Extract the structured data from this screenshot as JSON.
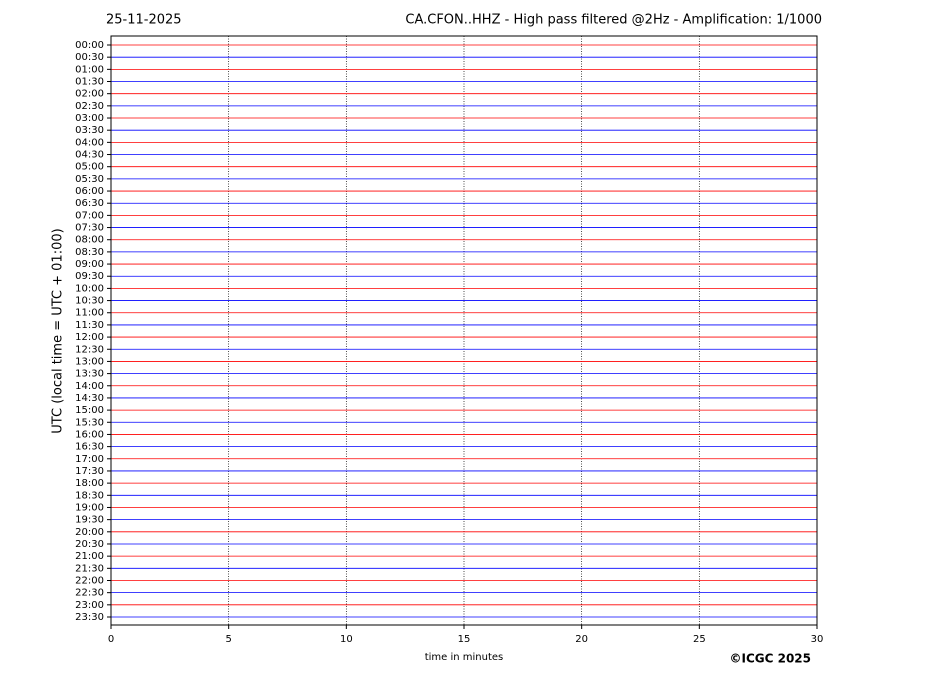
{
  "chart_data": {
    "type": "helicorder",
    "date": "25-11-2025",
    "title": "CA.CFON..HHZ - High pass filtered @2Hz - Amplification: 1/1000",
    "categories": [
      "00:00",
      "00:30",
      "01:00",
      "01:30",
      "02:00",
      "02:30",
      "03:00",
      "03:30",
      "04:00",
      "04:30",
      "05:00",
      "05:30",
      "06:00",
      "06:30",
      "07:00",
      "07:30",
      "08:00",
      "08:30",
      "09:00",
      "09:30",
      "10:00",
      "10:30",
      "11:00",
      "11:30",
      "12:00",
      "12:30",
      "13:00",
      "13:30",
      "14:00",
      "14:30",
      "15:00",
      "15:30",
      "16:00",
      "16:30",
      "17:00",
      "17:30",
      "18:00",
      "18:30",
      "19:00",
      "19:30",
      "20:00",
      "20:30",
      "21:00",
      "21:30",
      "22:00",
      "22:30",
      "23:00",
      "23:30"
    ],
    "colors": [
      "#ff0000",
      "#0000ff"
    ],
    "xlabel": "time in minutes",
    "ylabel": "UTC (local time = UTC + 01:00)",
    "xlim": [
      0,
      30
    ],
    "xticks": [
      0,
      5,
      10,
      15,
      20,
      25,
      30
    ],
    "grid": true,
    "copyright": "©ICGC 2025"
  }
}
